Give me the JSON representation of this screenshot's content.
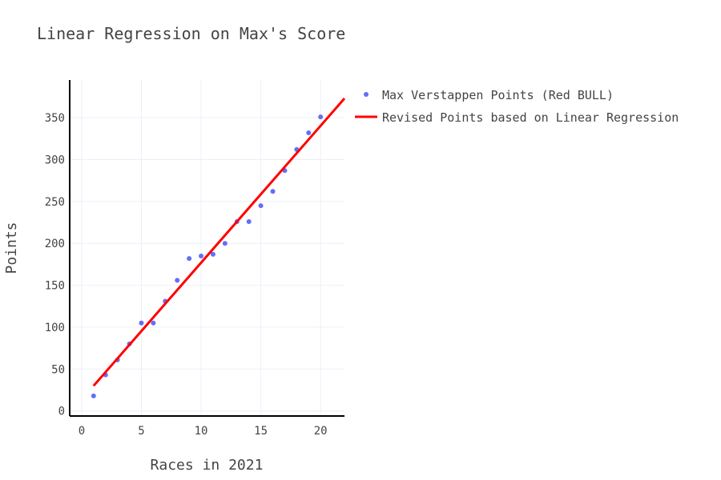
{
  "chart_data": {
    "type": "scatter",
    "title": "Linear Regression on Max's Score",
    "xlabel": "Races in 2021",
    "ylabel": "Points",
    "xlim": [
      -1,
      22
    ],
    "ylim": [
      -6,
      395
    ],
    "x_ticks": [
      0,
      5,
      10,
      15,
      20
    ],
    "y_ticks": [
      0,
      50,
      100,
      150,
      200,
      250,
      300,
      350
    ],
    "grid": true,
    "legend_position": "right",
    "series": [
      {
        "name": "Max Verstappen Points (Red BULL)",
        "type": "scatter",
        "color": "#636efa",
        "x": [
          1,
          2,
          3,
          4,
          5,
          6,
          7,
          8,
          9,
          10,
          11,
          12,
          13,
          14,
          15,
          16,
          17,
          18,
          19,
          20
        ],
        "y": [
          18,
          43,
          61,
          80,
          105,
          105,
          131,
          156,
          182,
          185,
          187,
          200,
          226,
          226,
          245,
          262,
          287,
          312,
          332,
          351
        ]
      },
      {
        "name": "Revised Points based on Linear Regression",
        "type": "line",
        "color": "#ff0000",
        "x": [
          1,
          22
        ],
        "y": [
          30,
          373
        ]
      }
    ]
  }
}
